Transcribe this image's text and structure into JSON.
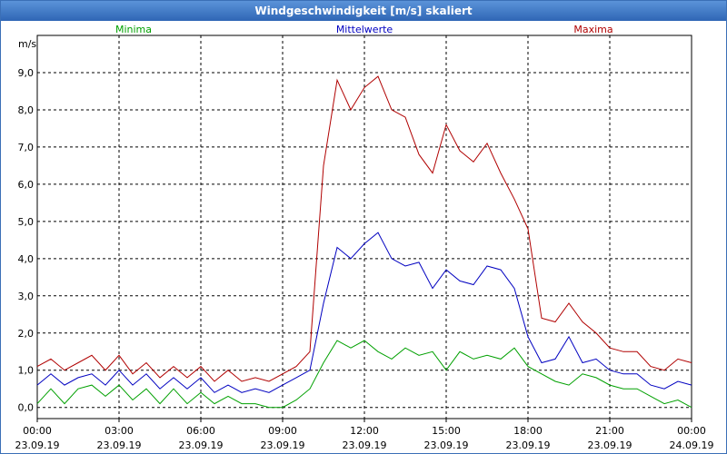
{
  "window": {
    "title": "Windgeschwindigkeit [m/s] skaliert"
  },
  "chart_data": {
    "type": "line",
    "title": "Windgeschwindigkeit [m/s] skaliert",
    "ylabel": "m/s",
    "xlabel": "",
    "ylim": [
      -0.3,
      10.0
    ],
    "xlim": [
      0,
      24
    ],
    "grid": true,
    "yticks": [
      {
        "value": 0,
        "label": "0,0"
      },
      {
        "value": 1,
        "label": "1,0"
      },
      {
        "value": 2,
        "label": "2,0"
      },
      {
        "value": 3,
        "label": "3,0"
      },
      {
        "value": 4,
        "label": "4,0"
      },
      {
        "value": 5,
        "label": "5,0"
      },
      {
        "value": 6,
        "label": "6,0"
      },
      {
        "value": 7,
        "label": "7,0"
      },
      {
        "value": 8,
        "label": "8,0"
      },
      {
        "value": 9,
        "label": "9,0"
      }
    ],
    "xticks": [
      {
        "value": 0,
        "time": "00:00",
        "date": "23.09.19"
      },
      {
        "value": 3,
        "time": "03:00",
        "date": "23.09.19"
      },
      {
        "value": 6,
        "time": "06:00",
        "date": "23.09.19"
      },
      {
        "value": 9,
        "time": "09:00",
        "date": "23.09.19"
      },
      {
        "value": 12,
        "time": "12:00",
        "date": "23.09.19"
      },
      {
        "value": 15,
        "time": "15:00",
        "date": "23.09.19"
      },
      {
        "value": 18,
        "time": "18:00",
        "date": "23.09.19"
      },
      {
        "value": 21,
        "time": "21:00",
        "date": "23.09.19"
      },
      {
        "value": 24,
        "time": "00:00",
        "date": "24.09.19"
      }
    ],
    "x": [
      0,
      0.5,
      1,
      1.5,
      2,
      2.5,
      3,
      3.5,
      4,
      4.5,
      5,
      5.5,
      6,
      6.5,
      7,
      7.5,
      8,
      8.5,
      9,
      9.5,
      10,
      10.5,
      11,
      11.5,
      12,
      12.5,
      13,
      13.5,
      14,
      14.5,
      15,
      15.5,
      16,
      16.5,
      17,
      17.5,
      18,
      18.5,
      19,
      19.5,
      20,
      20.5,
      21,
      21.5,
      22,
      22.5,
      23,
      23.5,
      24
    ],
    "series": [
      {
        "name": "Minima",
        "color": "#00a000",
        "legend_position": "left",
        "values": [
          0.1,
          0.5,
          0.1,
          0.5,
          0.6,
          0.3,
          0.6,
          0.2,
          0.5,
          0.1,
          0.5,
          0.1,
          0.4,
          0.1,
          0.3,
          0.1,
          0.1,
          0.0,
          0.0,
          0.2,
          0.5,
          1.2,
          1.8,
          1.6,
          1.8,
          1.5,
          1.3,
          1.6,
          1.4,
          1.5,
          1.0,
          1.5,
          1.3,
          1.4,
          1.3,
          1.6,
          1.1,
          0.9,
          0.7,
          0.6,
          0.9,
          0.8,
          0.6,
          0.5,
          0.5,
          0.3,
          0.1,
          0.2,
          0.0
        ]
      },
      {
        "name": "Mittelwerte",
        "color": "#0000c0",
        "legend_position": "center",
        "values": [
          0.6,
          0.9,
          0.6,
          0.8,
          0.9,
          0.6,
          1.0,
          0.6,
          0.9,
          0.5,
          0.8,
          0.5,
          0.8,
          0.4,
          0.6,
          0.4,
          0.5,
          0.4,
          0.6,
          0.8,
          1.0,
          2.8,
          4.3,
          4.0,
          4.4,
          4.7,
          4.0,
          3.8,
          3.9,
          3.2,
          3.7,
          3.4,
          3.3,
          3.8,
          3.7,
          3.2,
          1.9,
          1.2,
          1.3,
          1.9,
          1.2,
          1.3,
          1.0,
          0.9,
          0.9,
          0.6,
          0.5,
          0.7,
          0.6
        ]
      },
      {
        "name": "Maxima",
        "color": "#b00000",
        "legend_position": "right",
        "values": [
          1.1,
          1.3,
          1.0,
          1.2,
          1.4,
          1.0,
          1.4,
          0.9,
          1.2,
          0.8,
          1.1,
          0.8,
          1.1,
          0.7,
          1.0,
          0.7,
          0.8,
          0.7,
          0.9,
          1.1,
          1.5,
          6.5,
          8.8,
          8.0,
          8.6,
          8.9,
          8.0,
          7.8,
          6.8,
          6.3,
          7.6,
          6.9,
          6.6,
          7.1,
          6.3,
          5.6,
          4.8,
          2.4,
          2.3,
          2.8,
          2.3,
          2.0,
          1.6,
          1.5,
          1.5,
          1.1,
          1.0,
          1.3,
          1.2
        ]
      }
    ]
  }
}
